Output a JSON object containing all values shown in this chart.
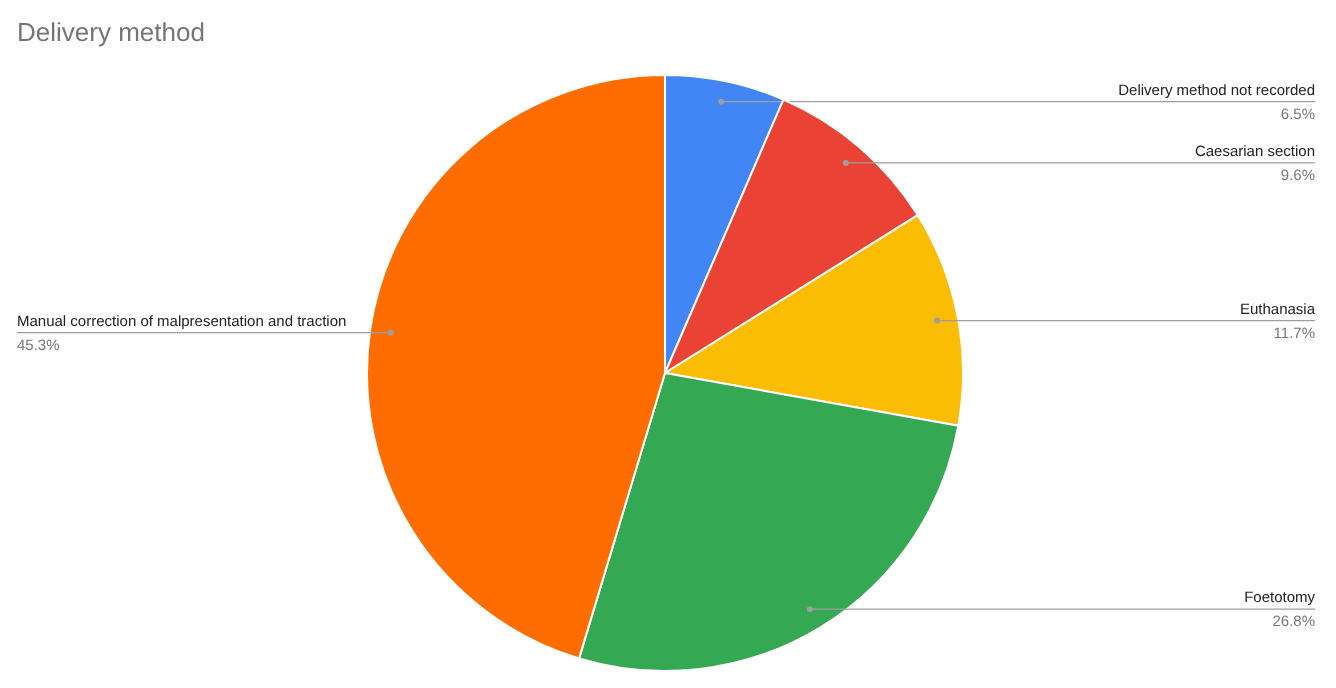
{
  "chart_data": {
    "type": "pie",
    "title": "Delivery method",
    "categories": [
      "Delivery method not recorded",
      "Caesarian section",
      "Euthanasia",
      "Foetotomy",
      "Manual correction of malpresentation and traction"
    ],
    "values": [
      6.5,
      9.6,
      11.7,
      26.8,
      45.3
    ],
    "colors": [
      "#4285f4",
      "#ea4335",
      "#fbbc04",
      "#34a853",
      "#ff6d01"
    ],
    "value_labels": [
      "6.5%",
      "9.6%",
      "11.7%",
      "26.8%",
      "45.3%"
    ]
  }
}
